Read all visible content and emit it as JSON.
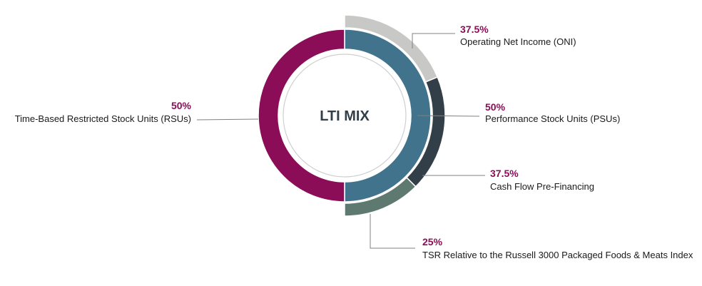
{
  "chart_data": {
    "type": "pie",
    "title": "LTI MIX",
    "inner_ring": [
      {
        "label": "Performance Stock Units (PSUs)",
        "value": 50,
        "display": "50%",
        "color": "#41738D"
      },
      {
        "label": "Time-Based Restricted Stock Units (RSUs)",
        "value": 50,
        "display": "50%",
        "color": "#8B0D57"
      }
    ],
    "outer_ring": {
      "parent": "Performance Stock Units (PSUs)",
      "segments": [
        {
          "label": "Operating Net Income (ONI)",
          "value": 37.5,
          "display": "37.5%",
          "color": "#C8C9C6"
        },
        {
          "label": "Cash Flow Pre-Financing",
          "value": 37.5,
          "display": "37.5%",
          "color": "#333F48"
        },
        {
          "label": "TSR Relative to the Russell 3000 Packaged Foods & Meats Index",
          "value": 25,
          "display": "25%",
          "color": "#5E7A70"
        }
      ]
    },
    "label_color": "#8B0D57",
    "leader_color": "#808080"
  }
}
